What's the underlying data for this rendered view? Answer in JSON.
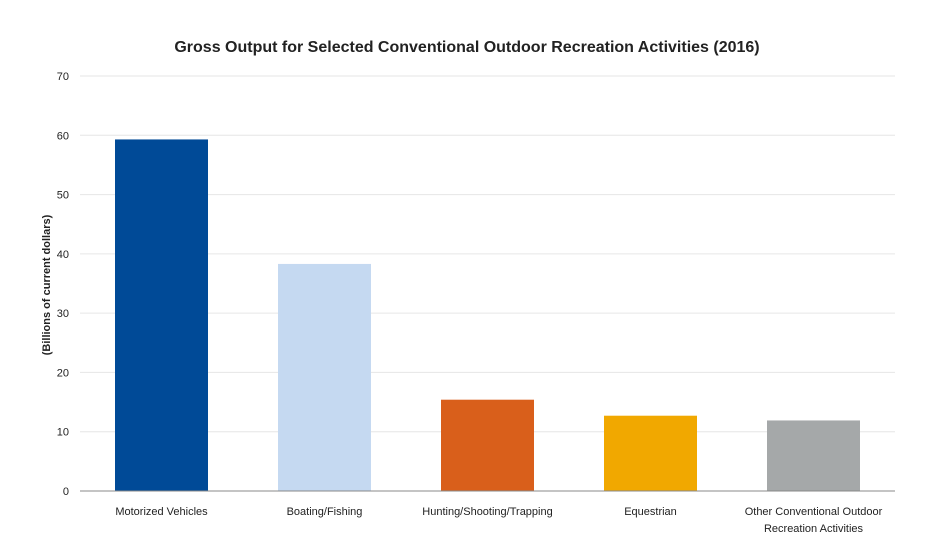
{
  "chart_data": {
    "type": "bar",
    "title": "Gross Output for Selected Conventional Outdoor Recreation Activities (2016)",
    "xlabel": "",
    "ylabel": "(Billions of current dollars)",
    "ylim": [
      0,
      70
    ],
    "yticks": [
      0,
      10,
      20,
      30,
      40,
      50,
      60,
      70
    ],
    "grid": true,
    "legend": "none",
    "categories": [
      "Motorized Vehicles",
      "Boating/Fishing",
      "Hunting/Shooting/Trapping",
      "Equestrian",
      "Other Conventional Outdoor Recreation Activities"
    ],
    "category_lines": [
      [
        "Motorized Vehicles"
      ],
      [
        "Boating/Fishing"
      ],
      [
        "Hunting/Shooting/Trapping"
      ],
      [
        "Equestrian"
      ],
      [
        "Other Conventional Outdoor",
        "Recreation Activities"
      ]
    ],
    "values": [
      59.3,
      38.3,
      15.4,
      12.7,
      11.9
    ],
    "colors": [
      "#004a97",
      "#c5d9f1",
      "#d95f1b",
      "#f1a800",
      "#a5a8a9"
    ]
  }
}
